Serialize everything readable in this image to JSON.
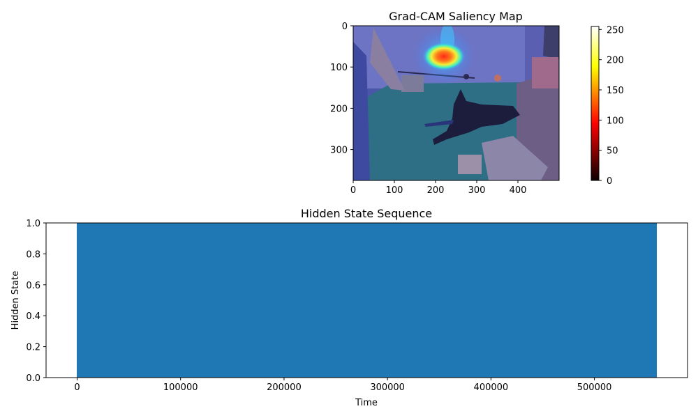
{
  "chart_data": [
    {
      "type": "heatmap",
      "title": "Grad-CAM Saliency Map",
      "image_size": [
        500,
        375
      ],
      "x_ticks": [
        0,
        100,
        200,
        300,
        400
      ],
      "y_ticks": [
        0,
        100,
        200,
        300
      ],
      "colorbar": {
        "colormap": "hot",
        "range": [
          0,
          255
        ],
        "ticks": [
          0,
          50,
          100,
          150,
          200,
          250
        ]
      },
      "overlay_colormap": "jet",
      "hotspot": {
        "x": 225,
        "y": 75,
        "peak_value": 255
      }
    },
    {
      "type": "area",
      "title": "Hidden State Sequence",
      "xlabel": "Time",
      "ylabel": "Hidden State",
      "xlim": [
        -30000,
        590000
      ],
      "ylim": [
        0,
        1
      ],
      "x_ticks": [
        0,
        100000,
        200000,
        300000,
        400000,
        500000
      ],
      "y_ticks": [
        "0.0",
        "0.2",
        "0.4",
        "0.6",
        "0.8",
        "1.0"
      ],
      "x": [
        0,
        560000
      ],
      "values": [
        1,
        1
      ],
      "color": "#1f77b4"
    }
  ]
}
